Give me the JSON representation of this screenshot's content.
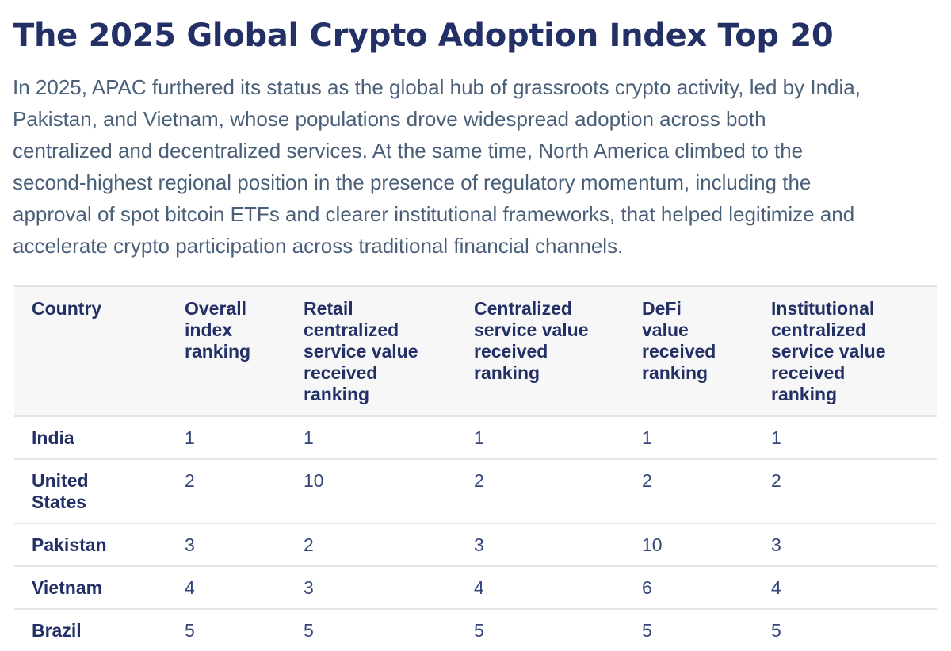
{
  "title": "The 2025 Global Crypto Adoption Index Top 20",
  "intro_lines": [
    "In 2025, APAC furthered its status as the global hub of grassroots crypto activity, led by India,",
    "Pakistan, and Vietnam, whose populations drove widespread adoption across both",
    "centralized and decentralized services. At the same time, North America climbed to the",
    "second-highest regional position in the presence of regulatory momentum, including the",
    "approval of spot bitcoin ETFs and clearer institutional frameworks, that helped legitimize and",
    "accelerate crypto participation across traditional financial channels."
  ],
  "table": {
    "headers": [
      [
        "Country"
      ],
      [
        "Overall",
        "index",
        "ranking"
      ],
      [
        "Retail",
        "centralized",
        "service value",
        "received",
        "ranking"
      ],
      [
        "Centralized",
        "service value",
        "received",
        "ranking"
      ],
      [
        "DeFi",
        "value",
        "received",
        "ranking"
      ],
      [
        "Institutional",
        "centralized",
        "service value",
        "received",
        "ranking"
      ]
    ],
    "rows": [
      {
        "country": [
          "India"
        ],
        "overall": "1",
        "retail": "1",
        "centralized": "1",
        "defi": "1",
        "institutional": "1"
      },
      {
        "country": [
          "United",
          "States"
        ],
        "overall": "2",
        "retail": "10",
        "centralized": "2",
        "defi": "2",
        "institutional": "2"
      },
      {
        "country": [
          "Pakistan"
        ],
        "overall": "3",
        "retail": "2",
        "centralized": "3",
        "defi": "10",
        "institutional": "3"
      },
      {
        "country": [
          "Vietnam"
        ],
        "overall": "4",
        "retail": "3",
        "centralized": "4",
        "defi": "6",
        "institutional": "4"
      },
      {
        "country": [
          "Brazil"
        ],
        "overall": "5",
        "retail": "5",
        "centralized": "5",
        "defi": "5",
        "institutional": "5"
      }
    ]
  }
}
